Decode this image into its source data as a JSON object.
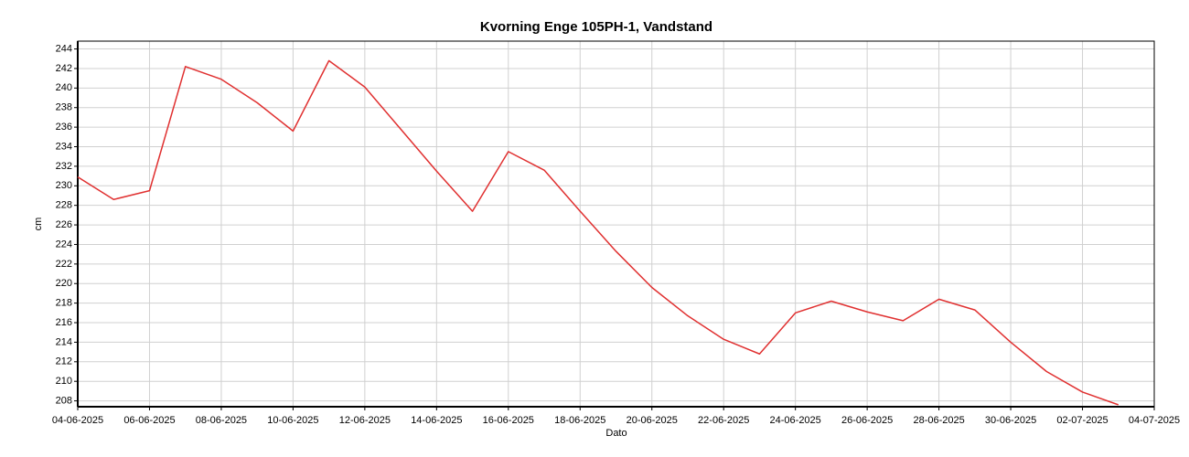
{
  "chart_data": {
    "type": "line",
    "title": "Kvorning Enge 105PH-1, Vandstand",
    "xlabel": "Dato",
    "ylabel": "cm",
    "x": [
      "04-06-2025",
      "05-06-2025",
      "06-06-2025",
      "07-06-2025",
      "08-06-2025",
      "09-06-2025",
      "10-06-2025",
      "11-06-2025",
      "12-06-2025",
      "13-06-2025",
      "14-06-2025",
      "15-06-2025",
      "16-06-2025",
      "17-06-2025",
      "18-06-2025",
      "19-06-2025",
      "20-06-2025",
      "21-06-2025",
      "22-06-2025",
      "23-06-2025",
      "24-06-2025",
      "25-06-2025",
      "26-06-2025",
      "27-06-2025",
      "28-06-2025",
      "29-06-2025",
      "30-06-2025",
      "01-07-2025",
      "02-07-2025",
      "03-07-2025"
    ],
    "series": [
      {
        "name": "Vandstand",
        "color": "#e03030",
        "values": [
          230.9,
          228.6,
          229.5,
          242.2,
          240.9,
          238.5,
          235.6,
          242.8,
          240.1,
          235.8,
          231.5,
          227.4,
          233.5,
          231.6,
          227.4,
          223.3,
          219.6,
          216.7,
          214.3,
          212.8,
          217.0,
          218.2,
          217.1,
          216.2,
          218.4,
          217.3,
          214.0,
          211.0,
          208.9,
          207.6
        ]
      }
    ],
    "xlim": [
      "04-06-2025",
      "04-07-2025"
    ],
    "xticks": [
      "04-06-2025",
      "06-06-2025",
      "08-06-2025",
      "10-06-2025",
      "12-06-2025",
      "14-06-2025",
      "16-06-2025",
      "18-06-2025",
      "20-06-2025",
      "22-06-2025",
      "24-06-2025",
      "26-06-2025",
      "28-06-2025",
      "30-06-2025",
      "02-07-2025",
      "04-07-2025"
    ],
    "ylim": [
      207.4,
      244.8
    ],
    "yticks": [
      208,
      210,
      212,
      214,
      216,
      218,
      220,
      222,
      224,
      226,
      228,
      230,
      232,
      234,
      236,
      238,
      240,
      242,
      244
    ],
    "grid": true
  }
}
